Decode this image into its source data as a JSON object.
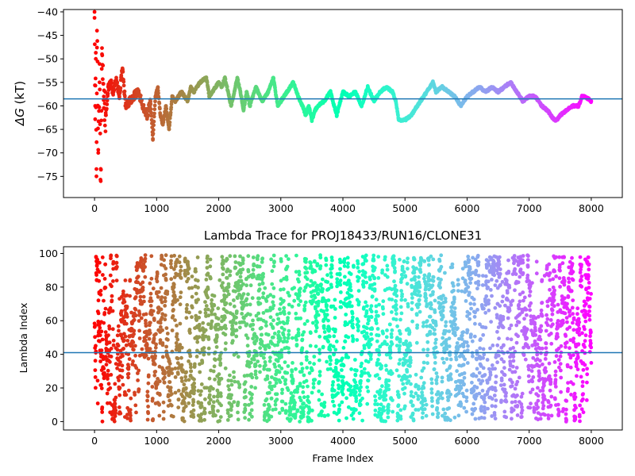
{
  "chart_data": [
    {
      "type": "scatter",
      "title": "",
      "xlabel": "",
      "ylabel": "ΔG (kT)",
      "ylabel_symbol": "ΔG",
      "ylabel_unit": " (kT)",
      "xlim": [
        -500,
        8500
      ],
      "ylim": [
        -79.5,
        -39.5
      ],
      "xticks": [
        0,
        1000,
        2000,
        3000,
        4000,
        5000,
        6000,
        7000,
        8000
      ],
      "xtick_labels": [
        "0",
        "1000",
        "2000",
        "3000",
        "4000",
        "5000",
        "6000",
        "7000",
        "8000"
      ],
      "yticks": [
        -75,
        -70,
        -65,
        -60,
        -55,
        -50,
        -45,
        -40
      ],
      "ytick_labels": [
        "−75",
        "−70",
        "−65",
        "−60",
        "−55",
        "−50",
        "−45",
        "−40"
      ],
      "hline": -58.5,
      "hline_color": "#1f77b4",
      "colormap": "rainbow (red at frame 0 → violet at frame 8000)",
      "series": [
        {
          "x": [
            0,
            10,
            20,
            30,
            40,
            60,
            80,
            100,
            120,
            150,
            180,
            220,
            260,
            300,
            350,
            400,
            450,
            500,
            560,
            620,
            700,
            780,
            850,
            900,
            940,
            980,
            1020,
            1060,
            1100,
            1150,
            1200,
            1250,
            1300,
            1400,
            1500,
            1550,
            1600,
            1700,
            1800,
            1850,
            1900,
            2000,
            2050,
            2100,
            2200,
            2300,
            2350,
            2400,
            2450,
            2500,
            2600,
            2700,
            2800,
            2880,
            2950,
            3000,
            3100,
            3200,
            3280,
            3350,
            3400,
            3450,
            3500,
            3550,
            3600,
            3700,
            3800,
            3900,
            4000,
            4100,
            4200,
            4300,
            4400,
            4500,
            4600,
            4700,
            4800,
            4850,
            4900,
            5000,
            5100,
            5200,
            5300,
            5400,
            5450,
            5500,
            5600,
            5700,
            5800,
            5900,
            6000,
            6100,
            6200,
            6300,
            6400,
            6500,
            6600,
            6700,
            6800,
            6900,
            7000,
            7100,
            7200,
            7300,
            7400,
            7450,
            7500,
            7600,
            7700,
            7800,
            7850,
            7900,
            8000
          ],
          "y": [
            -40,
            -60,
            -50,
            -75,
            -44,
            -70,
            -55,
            -76,
            -49,
            -58,
            -62,
            -56,
            -55,
            -57,
            -54,
            -58,
            -52,
            -60,
            -59,
            -58,
            -57,
            -60,
            -62,
            -59,
            -67,
            -58,
            -56,
            -62,
            -64,
            -60,
            -65,
            -58,
            -59,
            -57,
            -59,
            -56,
            -57,
            -55,
            -54,
            -58,
            -57,
            -55,
            -56,
            -54,
            -60,
            -54,
            -57,
            -61,
            -57,
            -60,
            -56,
            -59,
            -57,
            -54,
            -60,
            -59,
            -57,
            -55,
            -58,
            -60,
            -62,
            -60,
            -63,
            -61,
            -60,
            -59,
            -57,
            -62,
            -57,
            -58,
            -57,
            -60,
            -56,
            -59,
            -57,
            -56,
            -57,
            -59,
            -63,
            -63,
            -62,
            -60,
            -58,
            -56,
            -55,
            -57,
            -56,
            -57,
            -58,
            -60,
            -58,
            -57,
            -56,
            -57,
            -56,
            -57,
            -56,
            -55,
            -57,
            -59,
            -58,
            -58,
            -60,
            -61,
            -63,
            -63,
            -62,
            -61,
            -60,
            -60,
            -58,
            -58,
            -59
          ]
        }
      ]
    },
    {
      "type": "scatter",
      "title": "Lambda Trace for PROJ18433/RUN16/CLONE31",
      "xlabel": "Frame Index",
      "ylabel": "Lambda Index",
      "xlim": [
        -500,
        8500
      ],
      "ylim": [
        -5,
        104
      ],
      "xticks": [
        0,
        1000,
        2000,
        3000,
        4000,
        5000,
        6000,
        7000,
        8000
      ],
      "xtick_labels": [
        "0",
        "1000",
        "2000",
        "3000",
        "4000",
        "5000",
        "6000",
        "7000",
        "8000"
      ],
      "yticks": [
        0,
        20,
        40,
        60,
        80,
        100
      ],
      "ytick_labels": [
        "0",
        "20",
        "40",
        "60",
        "80",
        "100"
      ],
      "hline": 41,
      "hline_color": "#1f77b4",
      "colormap": "rainbow (red at frame 0 → violet at frame 8000)",
      "frame_range": [
        0,
        8000
      ],
      "lambda_range": [
        0,
        99
      ],
      "points_shown": 4000
    }
  ]
}
